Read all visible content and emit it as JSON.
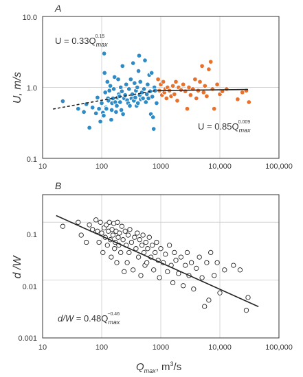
{
  "colors": {
    "series_low": "#2f8bc6",
    "series_high": "#e8712c",
    "hollow": "#ffffff",
    "line": "#222222"
  },
  "chart_data": [
    {
      "panel": "A",
      "type": "scatter",
      "xscale": "log",
      "yscale": "log",
      "xlim": [
        10,
        100000
      ],
      "ylim": [
        0.1,
        10
      ],
      "xticks": [
        "10",
        "100",
        "1000",
        "10,000",
        "100,000"
      ],
      "yticks": [
        "0.1",
        "1.0",
        "10.0"
      ],
      "grid": true,
      "ylabel": "U, m/s",
      "xlabel": "",
      "annotations": {
        "eq_left_prefix": "U = 0.33Q",
        "eq_left_sub": "max",
        "eq_left_sup": "0.15",
        "eq_right_prefix": "U = 0.85Q",
        "eq_right_sub": "max",
        "eq_right_sup": "0.009"
      },
      "series": [
        {
          "color_key": "series_low",
          "points": [
            [
              22,
              0.64
            ],
            [
              40,
              0.5
            ],
            [
              50,
              0.45
            ],
            [
              55,
              0.58
            ],
            [
              62,
              0.27
            ],
            [
              70,
              0.52
            ],
            [
              80,
              0.43
            ],
            [
              85,
              0.72
            ],
            [
              90,
              0.5
            ],
            [
              95,
              0.33
            ],
            [
              100,
              0.6
            ],
            [
              105,
              0.44
            ],
            [
              108,
              0.4
            ],
            [
              110,
              3.0
            ],
            [
              112,
              1.6
            ],
            [
              115,
              0.85
            ],
            [
              118,
              0.52
            ],
            [
              120,
              0.5
            ],
            [
              125,
              1.2
            ],
            [
              128,
              0.7
            ],
            [
              130,
              0.65
            ],
            [
              135,
              0.9
            ],
            [
              140,
              1.05
            ],
            [
              145,
              0.35
            ],
            [
              148,
              0.48
            ],
            [
              150,
              0.6
            ],
            [
              155,
              0.7
            ],
            [
              160,
              0.95
            ],
            [
              165,
              1.4
            ],
            [
              170,
              0.62
            ],
            [
              175,
              0.45
            ],
            [
              180,
              0.55
            ],
            [
              185,
              0.72
            ],
            [
              190,
              1.3
            ],
            [
              195,
              0.8
            ],
            [
              200,
              0.75
            ],
            [
              205,
              0.62
            ],
            [
              210,
              1.0
            ],
            [
              215,
              0.48
            ],
            [
              220,
              0.88
            ],
            [
              225,
              2.0
            ],
            [
              230,
              0.42
            ],
            [
              240,
              0.7
            ],
            [
              250,
              0.78
            ],
            [
              260,
              1.1
            ],
            [
              270,
              0.66
            ],
            [
              280,
              0.6
            ],
            [
              290,
              0.95
            ],
            [
              300,
              0.55
            ],
            [
              310,
              1.3
            ],
            [
              320,
              0.7
            ],
            [
              330,
              0.8
            ],
            [
              340,
              2.2
            ],
            [
              350,
              0.65
            ],
            [
              360,
              1.15
            ],
            [
              370,
              0.72
            ],
            [
              380,
              0.9
            ],
            [
              390,
              0.55
            ],
            [
              400,
              1.0
            ],
            [
              410,
              0.6
            ],
            [
              420,
              1.7
            ],
            [
              430,
              2.8
            ],
            [
              440,
              0.78
            ],
            [
              450,
              1.2
            ],
            [
              460,
              0.68
            ],
            [
              480,
              0.85
            ],
            [
              500,
              0.7
            ],
            [
              520,
              0.95
            ],
            [
              540,
              2.4
            ],
            [
              560,
              0.62
            ],
            [
              580,
              0.8
            ],
            [
              600,
              1.1
            ],
            [
              620,
              0.7
            ],
            [
              640,
              1.5
            ],
            [
              660,
              0.88
            ],
            [
              680,
              0.42
            ],
            [
              700,
              1.6
            ],
            [
              720,
              0.74
            ],
            [
              740,
              0.38
            ],
            [
              760,
              0.26
            ],
            [
              780,
              1.0
            ],
            [
              800,
              0.9
            ],
            [
              850,
              0.6
            ]
          ]
        },
        {
          "color_key": "series_high",
          "points": [
            [
              900,
              1.3
            ],
            [
              950,
              0.9
            ],
            [
              1000,
              1.1
            ],
            [
              1050,
              0.78
            ],
            [
              1100,
              1.2
            ],
            [
              1150,
              0.85
            ],
            [
              1200,
              0.95
            ],
            [
              1250,
              0.7
            ],
            [
              1300,
              1.0
            ],
            [
              1400,
              0.9
            ],
            [
              1500,
              0.75
            ],
            [
              1600,
              1.05
            ],
            [
              1700,
              0.8
            ],
            [
              1800,
              1.2
            ],
            [
              1900,
              0.65
            ],
            [
              2000,
              1.0
            ],
            [
              2200,
              0.92
            ],
            [
              2400,
              1.1
            ],
            [
              2600,
              0.88
            ],
            [
              2800,
              0.5
            ],
            [
              3000,
              1.0
            ],
            [
              3200,
              0.78
            ],
            [
              3500,
              0.95
            ],
            [
              3800,
              1.3
            ],
            [
              4000,
              0.7
            ],
            [
              4300,
              0.9
            ],
            [
              4600,
              1.2
            ],
            [
              5000,
              2.0
            ],
            [
              5300,
              0.85
            ],
            [
              5600,
              1.05
            ],
            [
              6000,
              0.75
            ],
            [
              6500,
              1.8
            ],
            [
              7000,
              2.3
            ],
            [
              7500,
              0.95
            ],
            [
              8000,
              0.5
            ],
            [
              9000,
              1.1
            ],
            [
              10000,
              0.8
            ],
            [
              11000,
              0.88
            ],
            [
              13000,
              0.95
            ],
            [
              20000,
              0.68
            ],
            [
              24000,
              0.85
            ],
            [
              28000,
              0.9
            ],
            [
              31000,
              0.62
            ]
          ]
        }
      ],
      "fits": [
        {
          "style": "dashed",
          "coef": 0.33,
          "exp": 0.15,
          "x_range": [
            15,
            900
          ]
        },
        {
          "style": "solid",
          "coef": 0.85,
          "exp": 0.009,
          "x_range": [
            900,
            30000
          ]
        }
      ]
    },
    {
      "panel": "B",
      "type": "scatter",
      "xscale": "log",
      "yscale": "log",
      "xlim": [
        10,
        100000
      ],
      "ylim": [
        0.001,
        0.3
      ],
      "xticks": [
        "10",
        "100",
        "1000",
        "10,000",
        "100,000"
      ],
      "yticks": [
        "0.001",
        "0.01",
        "0.1"
      ],
      "grid": true,
      "ylabel": "d /W",
      "xlabel_prefix": "Q",
      "xlabel_sub": "max",
      "xlabel_suffix": ", m",
      "xlabel_sup": "3",
      "xlabel_end": "/s",
      "annotations": {
        "eq_prefix": "d/W",
        "eq_mid": " = 0.48Q",
        "eq_sub": "max",
        "eq_sup": "−0.46"
      },
      "series": [
        {
          "color_key": "hollow",
          "points": [
            [
              22,
              0.085
            ],
            [
              40,
              0.1
            ],
            [
              45,
              0.06
            ],
            [
              55,
              0.045
            ],
            [
              62,
              0.09
            ],
            [
              70,
              0.075
            ],
            [
              80,
              0.11
            ],
            [
              85,
              0.07
            ],
            [
              90,
              0.045
            ],
            [
              95,
              0.1
            ],
            [
              100,
              0.065
            ],
            [
              105,
              0.03
            ],
            [
              110,
              0.08
            ],
            [
              115,
              0.055
            ],
            [
              120,
              0.09
            ],
            [
              125,
              0.04
            ],
            [
              130,
              0.07
            ],
            [
              135,
              0.1
            ],
            [
              140,
              0.05
            ],
            [
              145,
              0.025
            ],
            [
              150,
              0.075
            ],
            [
              155,
              0.06
            ],
            [
              160,
              0.095
            ],
            [
              165,
              0.035
            ],
            [
              170,
              0.045
            ],
            [
              175,
              0.07
            ],
            [
              180,
              0.02
            ],
            [
              185,
              0.1
            ],
            [
              190,
              0.055
            ],
            [
              195,
              0.04
            ],
            [
              200,
              0.065
            ],
            [
              210,
              0.03
            ],
            [
              220,
              0.085
            ],
            [
              230,
              0.05
            ],
            [
              240,
              0.014
            ],
            [
              250,
              0.07
            ],
            [
              260,
              0.04
            ],
            [
              270,
              0.02
            ],
            [
              280,
              0.06
            ],
            [
              290,
              0.03
            ],
            [
              300,
              0.075
            ],
            [
              320,
              0.045
            ],
            [
              340,
              0.015
            ],
            [
              360,
              0.055
            ],
            [
              380,
              0.035
            ],
            [
              400,
              0.065
            ],
            [
              420,
              0.025
            ],
            [
              440,
              0.05
            ],
            [
              460,
              0.012
            ],
            [
              480,
              0.04
            ],
            [
              500,
              0.06
            ],
            [
              520,
              0.03
            ],
            [
              540,
              0.018
            ],
            [
              560,
              0.045
            ],
            [
              580,
              0.02
            ],
            [
              600,
              0.035
            ],
            [
              640,
              0.055
            ],
            [
              680,
              0.025
            ],
            [
              720,
              0.04
            ],
            [
              760,
              0.015
            ],
            [
              800,
              0.03
            ],
            [
              850,
              0.045
            ],
            [
              900,
              0.022
            ],
            [
              950,
              0.011
            ],
            [
              1000,
              0.035
            ],
            [
              1100,
              0.02
            ],
            [
              1200,
              0.028
            ],
            [
              1300,
              0.014
            ],
            [
              1400,
              0.04
            ],
            [
              1500,
              0.018
            ],
            [
              1600,
              0.009
            ],
            [
              1700,
              0.03
            ],
            [
              1800,
              0.022
            ],
            [
              2000,
              0.013
            ],
            [
              2200,
              0.025
            ],
            [
              2400,
              0.008
            ],
            [
              2600,
              0.018
            ],
            [
              2800,
              0.03
            ],
            [
              3000,
              0.012
            ],
            [
              3300,
              0.02
            ],
            [
              3600,
              0.007
            ],
            [
              4000,
              0.016
            ],
            [
              4500,
              0.025
            ],
            [
              5000,
              0.011
            ],
            [
              5500,
              0.0035
            ],
            [
              6000,
              0.02
            ],
            [
              6500,
              0.0045
            ],
            [
              7000,
              0.03
            ],
            [
              8000,
              0.012
            ],
            [
              9000,
              0.02
            ],
            [
              10000,
              0.006
            ],
            [
              12000,
              0.015
            ],
            [
              17000,
              0.018
            ],
            [
              22000,
              0.015
            ],
            [
              28000,
              0.003
            ],
            [
              30000,
              0.005
            ]
          ]
        }
      ],
      "fits": [
        {
          "style": "solid",
          "coef": 0.48,
          "exp": -0.46,
          "x_range": [
            17,
            45000
          ]
        }
      ]
    }
  ]
}
